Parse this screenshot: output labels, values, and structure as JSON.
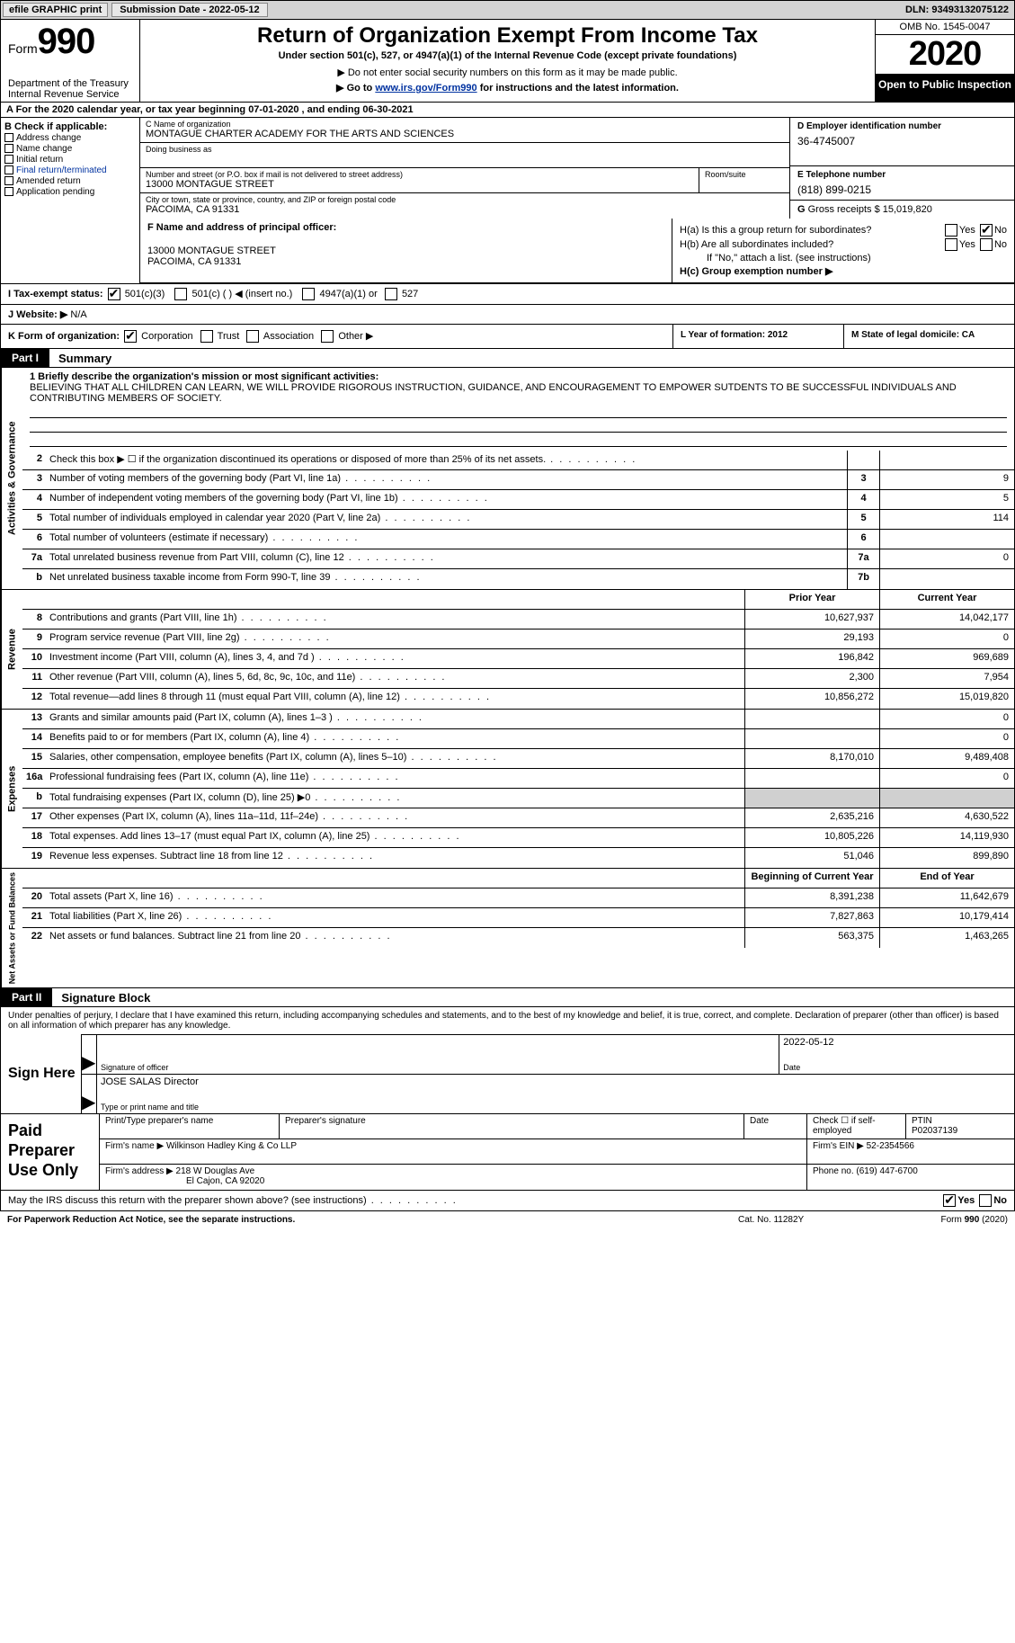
{
  "topbar": {
    "efile": "efile GRAPHIC print",
    "submission": "Submission Date - 2022-05-12",
    "dln": "DLN: 93493132075122"
  },
  "header": {
    "form_prefix": "Form",
    "form_num": "990",
    "dept": "Department of the Treasury\nInternal Revenue Service",
    "title": "Return of Organization Exempt From Income Tax",
    "sub1": "Under section 501(c), 527, or 4947(a)(1) of the Internal Revenue Code (except private foundations)",
    "sub2": "▶ Do not enter social security numbers on this form as it may be made public.",
    "sub3_pre": "▶ Go to ",
    "sub3_link": "www.irs.gov/Form990",
    "sub3_post": " for instructions and the latest information.",
    "omb": "OMB No. 1545-0047",
    "year": "2020",
    "open": "Open to Public Inspection"
  },
  "rowA": "A For the 2020 calendar year, or tax year beginning 07-01-2020    , and ending 06-30-2021",
  "colB": {
    "hdr": "B Check if applicable:",
    "items": [
      "Address change",
      "Name change",
      "Initial return",
      "Final return/terminated",
      "Amended return",
      "Application pending"
    ]
  },
  "colC": {
    "name_lbl": "C Name of organization",
    "name": "MONTAGUE CHARTER ACADEMY FOR THE ARTS AND SCIENCES",
    "dba_lbl": "Doing business as",
    "dba": "",
    "addr_lbl": "Number and street (or P.O. box if mail is not delivered to street address)",
    "room_lbl": "Room/suite",
    "addr": "13000 MONTAGUE STREET",
    "city_lbl": "City or town, state or province, country, and ZIP or foreign postal code",
    "city": "PACOIMA, CA  91331"
  },
  "colD": {
    "lbl": "D Employer identification number",
    "val": "36-4745007"
  },
  "colE": {
    "lbl": "E Telephone number",
    "val": "(818) 899-0215"
  },
  "colG": {
    "lbl": "G",
    "txt": "Gross receipts $ 15,019,820"
  },
  "colF": {
    "lbl": "F  Name and address of principal officer:",
    "addr1": "13000 MONTAGUE STREET",
    "addr2": "PACOIMA, CA  91331"
  },
  "colH": {
    "a_lbl": "H(a)  Is this a group return for subordinates?",
    "b_lbl": "H(b)  Are all subordinates included?",
    "note": "If \"No,\" attach a list. (see instructions)",
    "c_lbl": "H(c)  Group exemption number ▶",
    "yes": "Yes",
    "no": "No"
  },
  "rowI": {
    "lbl": "I   Tax-exempt status:",
    "c3": "501(c)(3)",
    "c": "501(c) (  )   ◀ (insert no.)",
    "a1": "4947(a)(1) or",
    "s527": "527"
  },
  "rowJ": {
    "lbl": "J   Website: ▶",
    "val": "N/A"
  },
  "rowK": {
    "lbl": "K Form of organization:",
    "corp": "Corporation",
    "trust": "Trust",
    "assoc": "Association",
    "other": "Other ▶",
    "l": "L Year of formation: 2012",
    "m": "M State of legal domicile: CA"
  },
  "partI": {
    "label": "Part I",
    "title": "Summary"
  },
  "mission": {
    "lbl": "1  Briefly describe the organization's mission or most significant activities:",
    "text": "BELIEVING THAT ALL CHILDREN CAN LEARN, WE WILL PROVIDE RIGOROUS INSTRUCTION, GUIDANCE, AND ENCOURAGEMENT TO EMPOWER SUTDENTS TO BE SUCCESSFUL INDIVIDUALS AND CONTRIBUTING MEMBERS OF SOCIETY."
  },
  "lines_gov": [
    {
      "n": "2",
      "d": "Check this box ▶ ☐  if the organization discontinued its operations or disposed of more than 25% of its net assets.",
      "box": "",
      "v1": "",
      "v2": ""
    },
    {
      "n": "3",
      "d": "Number of voting members of the governing body (Part VI, line 1a)",
      "box": "3",
      "v2": "9"
    },
    {
      "n": "4",
      "d": "Number of independent voting members of the governing body (Part VI, line 1b)",
      "box": "4",
      "v2": "5"
    },
    {
      "n": "5",
      "d": "Total number of individuals employed in calendar year 2020 (Part V, line 2a)",
      "box": "5",
      "v2": "114"
    },
    {
      "n": "6",
      "d": "Total number of volunteers (estimate if necessary)",
      "box": "6",
      "v2": ""
    },
    {
      "n": "7a",
      "d": "Total unrelated business revenue from Part VIII, column (C), line 12",
      "box": "7a",
      "v2": "0"
    },
    {
      "n": "b",
      "d": "Net unrelated business taxable income from Form 990-T, line 39",
      "box": "7b",
      "v2": ""
    }
  ],
  "header_cols": {
    "prior": "Prior Year",
    "current": "Current Year"
  },
  "lines_rev": [
    {
      "n": "8",
      "d": "Contributions and grants (Part VIII, line 1h)",
      "v1": "10,627,937",
      "v2": "14,042,177"
    },
    {
      "n": "9",
      "d": "Program service revenue (Part VIII, line 2g)",
      "v1": "29,193",
      "v2": "0"
    },
    {
      "n": "10",
      "d": "Investment income (Part VIII, column (A), lines 3, 4, and 7d )",
      "v1": "196,842",
      "v2": "969,689"
    },
    {
      "n": "11",
      "d": "Other revenue (Part VIII, column (A), lines 5, 6d, 8c, 9c, 10c, and 11e)",
      "v1": "2,300",
      "v2": "7,954"
    },
    {
      "n": "12",
      "d": "Total revenue—add lines 8 through 11 (must equal Part VIII, column (A), line 12)",
      "v1": "10,856,272",
      "v2": "15,019,820"
    }
  ],
  "lines_exp": [
    {
      "n": "13",
      "d": "Grants and similar amounts paid (Part IX, column (A), lines 1–3 )",
      "v1": "",
      "v2": "0"
    },
    {
      "n": "14",
      "d": "Benefits paid to or for members (Part IX, column (A), line 4)",
      "v1": "",
      "v2": "0"
    },
    {
      "n": "15",
      "d": "Salaries, other compensation, employee benefits (Part IX, column (A), lines 5–10)",
      "v1": "8,170,010",
      "v2": "9,489,408"
    },
    {
      "n": "16a",
      "d": "Professional fundraising fees (Part IX, column (A), line 11e)",
      "v1": "",
      "v2": "0"
    },
    {
      "n": "b",
      "d": "Total fundraising expenses (Part IX, column (D), line 25) ▶0",
      "v1": "shade",
      "v2": "shade"
    },
    {
      "n": "17",
      "d": "Other expenses (Part IX, column (A), lines 11a–11d, 11f–24e)",
      "v1": "2,635,216",
      "v2": "4,630,522"
    },
    {
      "n": "18",
      "d": "Total expenses. Add lines 13–17 (must equal Part IX, column (A), line 25)",
      "v1": "10,805,226",
      "v2": "14,119,930"
    },
    {
      "n": "19",
      "d": "Revenue less expenses. Subtract line 18 from line 12",
      "v1": "51,046",
      "v2": "899,890"
    }
  ],
  "header_cols2": {
    "prior": "Beginning of Current Year",
    "current": "End of Year"
  },
  "lines_net": [
    {
      "n": "20",
      "d": "Total assets (Part X, line 16)",
      "v1": "8,391,238",
      "v2": "11,642,679"
    },
    {
      "n": "21",
      "d": "Total liabilities (Part X, line 26)",
      "v1": "7,827,863",
      "v2": "10,179,414"
    },
    {
      "n": "22",
      "d": "Net assets or fund balances. Subtract line 21 from line 20",
      "v1": "563,375",
      "v2": "1,463,265"
    }
  ],
  "partII": {
    "label": "Part II",
    "title": "Signature Block"
  },
  "sig": {
    "decl": "Under penalties of perjury, I declare that I have examined this return, including accompanying schedules and statements, and to the best of my knowledge and belief, it is true, correct, and complete. Declaration of preparer (other than officer) is based on all information of which preparer has any knowledge.",
    "sign_here": "Sign Here",
    "sig_lbl": "Signature of officer",
    "date_lbl": "Date",
    "date_val": "2022-05-12",
    "name_lbl": "Type or print name and title",
    "name_val": "JOSE SALAS  Director"
  },
  "prep": {
    "title": "Paid Preparer Use Only",
    "r1": {
      "a": "Print/Type preparer's name",
      "b": "Preparer's signature",
      "c": "Date",
      "d": "Check ☐  if self-employed",
      "e_lbl": "PTIN",
      "e": "P02037139"
    },
    "r2": {
      "a": "Firm's name    ▶",
      "av": "Wilkinson Hadley King & Co LLP",
      "b": "Firm's EIN ▶",
      "bv": "52-2354566"
    },
    "r3": {
      "a": "Firm's address ▶",
      "av1": "218 W Douglas Ave",
      "av2": "El Cajon, CA  92020",
      "b": "Phone no.",
      "bv": "(619) 447-6700"
    }
  },
  "discuss": {
    "txt": "May the IRS discuss this return with the preparer shown above? (see instructions)",
    "yes": "Yes",
    "no": "No"
  },
  "footer": {
    "left": "For Paperwork Reduction Act Notice, see the separate instructions.",
    "mid": "Cat. No. 11282Y",
    "right": "Form 990 (2020)"
  }
}
